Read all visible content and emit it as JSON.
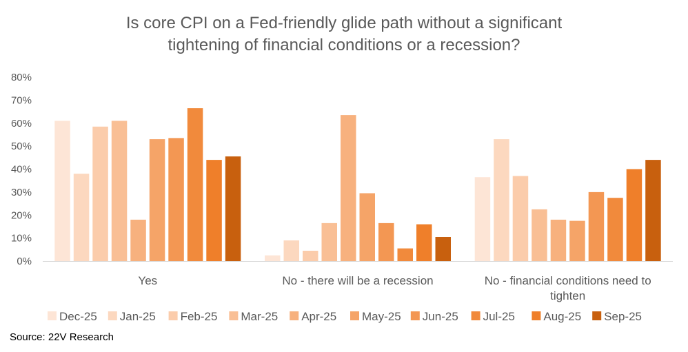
{
  "chart_data": {
    "type": "bar",
    "title_lines": [
      "Is core CPI on a Fed-friendly glide path without a significant",
      "tightening of financial conditions or a recession?"
    ],
    "categories": [
      [
        "Yes"
      ],
      [
        "No - there will be a recession"
      ],
      [
        "No - financial conditions need to",
        "tighten"
      ]
    ],
    "series": [
      {
        "name": "Dec-25",
        "color": "#FDE5D6",
        "values": [
          61,
          2.5,
          36.5
        ]
      },
      {
        "name": "Jan-25",
        "color": "#FCD8BF",
        "values": [
          38,
          9,
          53
        ]
      },
      {
        "name": "Feb-25",
        "color": "#FBCCAB",
        "values": [
          58.5,
          4.5,
          37
        ]
      },
      {
        "name": "Mar-25",
        "color": "#F9BF95",
        "values": [
          61,
          16.5,
          22.5
        ]
      },
      {
        "name": "Apr-25",
        "color": "#F7B17E",
        "values": [
          18,
          63.5,
          18
        ]
      },
      {
        "name": "May-25",
        "color": "#F5A468",
        "values": [
          53,
          29.5,
          17.5
        ]
      },
      {
        "name": "Jun-25",
        "color": "#F39753",
        "values": [
          53.5,
          16.5,
          30
        ]
      },
      {
        "name": "Jul-25",
        "color": "#F18A3C",
        "values": [
          66.5,
          5.5,
          27.5
        ]
      },
      {
        "name": "Aug-25",
        "color": "#EF7F2A",
        "values": [
          44,
          16,
          40
        ]
      },
      {
        "name": "Sep-25",
        "color": "#C8600E",
        "values": [
          45.5,
          10.5,
          44
        ]
      }
    ],
    "yticks": [
      "0%",
      "10%",
      "20%",
      "30%",
      "40%",
      "50%",
      "60%",
      "70%",
      "80%"
    ],
    "ylim": [
      0,
      80
    ],
    "grid": false,
    "legend_position": "bottom",
    "source": "Source: 22V Research"
  }
}
